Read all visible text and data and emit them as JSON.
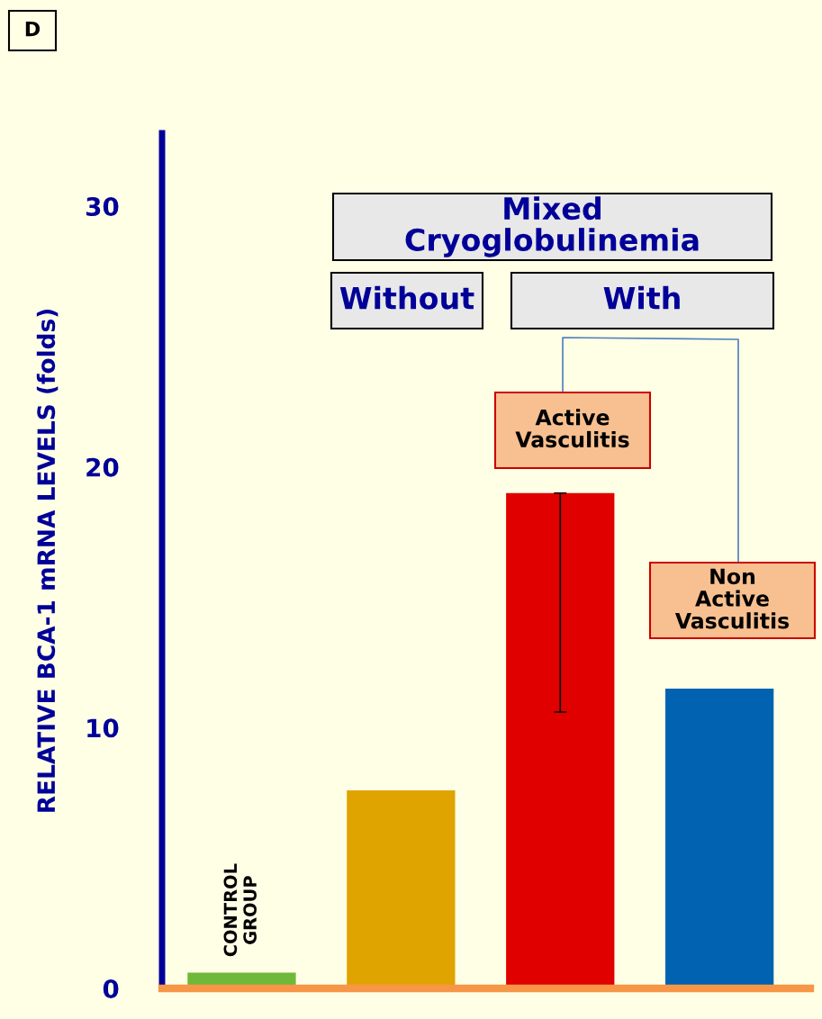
{
  "chart_data": {
    "type": "bar",
    "ylabel": "RELATIVE BCA-1 mRNA LEVELS (folds)",
    "categories": [
      "CONTROL GROUP",
      null,
      null,
      null
    ],
    "values": [
      0.6,
      7.6,
      19.0,
      11.5
    ],
    "colors": [
      "#6fb83a",
      "#e0a400",
      "#e00000",
      "#0062b0"
    ],
    "errors": [
      null,
      null,
      [
        10.6,
        19.0
      ],
      null
    ],
    "ylim": [
      0,
      32.8
    ],
    "yticks": [
      0,
      10,
      20,
      30
    ],
    "grid": false,
    "annotations": [
      "D",
      "Mixed Cryoglobulinemia",
      "Without",
      "With",
      "Active Vasculitis",
      "Non Active Vasculitis"
    ]
  }
}
